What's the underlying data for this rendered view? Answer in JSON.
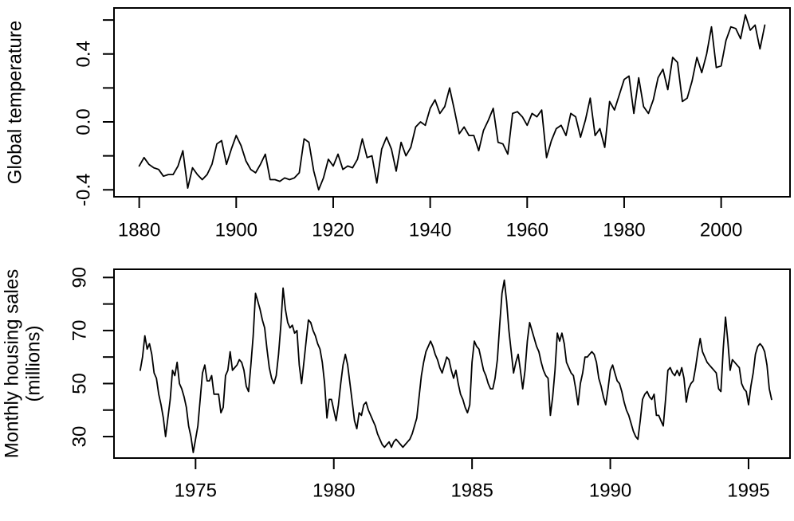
{
  "page": {
    "background": "#ffffff",
    "foreground": "#000000"
  },
  "chart_data": [
    {
      "id": "global-temperature",
      "type": "line",
      "title": "",
      "xlabel": "",
      "ylabel": "Global temperature",
      "ylabel_lines": [
        "Global temperature"
      ],
      "line_color": "#000000",
      "grid": false,
      "legend": "none",
      "x_start": 1880,
      "x_step": 1,
      "xlim": [
        1874.8,
        2014.2
      ],
      "ylim": [
        -0.441,
        0.671
      ],
      "xticks": [
        1880,
        1900,
        1920,
        1940,
        1960,
        1980,
        2000
      ],
      "xtick_labels": [
        "1880",
        "1900",
        "1920",
        "1940",
        "1960",
        "1980",
        "2000"
      ],
      "yticks": [
        -0.4,
        -0.2,
        0.0,
        0.2,
        0.4,
        0.6
      ],
      "ytick_labels": [
        "-0.4",
        "",
        "0.0",
        "",
        "0.4",
        ""
      ],
      "values": [
        -0.26,
        -0.21,
        -0.25,
        -0.27,
        -0.28,
        -0.32,
        -0.31,
        -0.31,
        -0.26,
        -0.17,
        -0.39,
        -0.27,
        -0.31,
        -0.34,
        -0.31,
        -0.25,
        -0.13,
        -0.11,
        -0.25,
        -0.16,
        -0.08,
        -0.14,
        -0.23,
        -0.28,
        -0.3,
        -0.25,
        -0.19,
        -0.34,
        -0.34,
        -0.35,
        -0.33,
        -0.34,
        -0.33,
        -0.3,
        -0.1,
        -0.12,
        -0.29,
        -0.4,
        -0.33,
        -0.22,
        -0.26,
        -0.19,
        -0.28,
        -0.26,
        -0.27,
        -0.22,
        -0.1,
        -0.21,
        -0.2,
        -0.36,
        -0.16,
        -0.09,
        -0.16,
        -0.29,
        -0.12,
        -0.2,
        -0.15,
        -0.03,
        0.0,
        -0.02,
        0.08,
        0.13,
        0.05,
        0.09,
        0.2,
        0.07,
        -0.07,
        -0.03,
        -0.08,
        -0.08,
        -0.17,
        -0.05,
        0.01,
        0.08,
        -0.12,
        -0.13,
        -0.19,
        0.05,
        0.06,
        0.03,
        -0.02,
        0.05,
        0.03,
        0.07,
        -0.21,
        -0.11,
        -0.04,
        -0.02,
        -0.08,
        0.05,
        0.03,
        -0.09,
        0.01,
        0.14,
        -0.08,
        -0.04,
        -0.15,
        0.12,
        0.07,
        0.16,
        0.25,
        0.27,
        0.05,
        0.26,
        0.09,
        0.05,
        0.13,
        0.26,
        0.31,
        0.19,
        0.38,
        0.35,
        0.12,
        0.14,
        0.24,
        0.38,
        0.29,
        0.4,
        0.56,
        0.32,
        0.33,
        0.48,
        0.56,
        0.55,
        0.49,
        0.63,
        0.54,
        0.57,
        0.43,
        0.57
      ]
    },
    {
      "id": "monthly-housing-sales",
      "type": "line",
      "title": "",
      "xlabel": "",
      "ylabel": "Monthly housing sales (millions)",
      "ylabel_lines": [
        "Monthly housing sales",
        "(millions)"
      ],
      "line_color": "#000000",
      "grid": false,
      "legend": "none",
      "x_start": 1973.0,
      "x_step": 0.0833333,
      "xlim": [
        1972.05,
        1996.5
      ],
      "ylim": [
        21.9,
        93.1
      ],
      "xticks": [
        1975,
        1980,
        1985,
        1990,
        1995
      ],
      "xtick_labels": [
        "1975",
        "1980",
        "1985",
        "1990",
        "1995"
      ],
      "yticks": [
        30,
        40,
        50,
        60,
        70,
        80,
        90
      ],
      "ytick_labels": [
        "30",
        "",
        "50",
        "",
        "70",
        "",
        "90"
      ],
      "values": [
        55,
        60,
        68,
        63,
        65,
        61,
        54,
        52,
        46,
        42,
        37,
        30,
        37,
        44,
        55,
        53,
        58,
        50,
        48,
        45,
        41,
        34,
        30,
        24,
        29,
        34,
        44,
        54,
        57,
        51,
        51,
        53,
        46,
        46,
        46,
        39,
        41,
        53,
        55,
        62,
        55,
        56,
        57,
        59,
        58,
        55,
        49,
        47,
        57,
        68,
        84,
        81,
        78,
        74,
        71,
        63,
        56,
        52,
        50,
        53,
        61,
        72,
        86,
        78,
        73,
        71,
        72,
        69,
        70,
        57,
        50,
        58,
        66,
        74,
        73,
        70,
        68,
        65,
        63,
        58,
        50,
        37,
        44,
        44,
        40,
        36,
        42,
        50,
        57,
        61,
        57,
        50,
        43,
        36,
        33,
        39,
        38,
        42,
        43,
        40,
        38,
        36,
        34,
        31,
        29,
        27,
        26,
        27,
        28,
        26,
        28,
        29,
        28,
        27,
        26,
        27,
        28,
        29,
        31,
        34,
        37,
        45,
        53,
        58,
        62,
        64,
        66,
        64,
        61,
        59,
        56,
        54,
        57,
        60,
        59,
        55,
        52,
        55,
        50,
        46,
        44,
        41,
        39,
        42,
        58,
        66,
        64,
        63,
        59,
        55,
        53,
        50,
        48,
        48,
        52,
        59,
        72,
        84,
        89,
        81,
        70,
        62,
        54,
        58,
        61,
        55,
        48,
        55,
        66,
        73,
        70,
        67,
        64,
        62,
        58,
        55,
        53,
        52,
        38,
        45,
        55,
        69,
        66,
        69,
        65,
        58,
        56,
        54,
        53,
        48,
        42,
        50,
        54,
        60,
        60,
        61,
        62,
        61,
        58,
        52,
        49,
        45,
        42,
        48,
        55,
        57,
        54,
        51,
        50,
        47,
        43,
        40,
        38,
        35,
        32,
        30,
        29,
        36,
        44,
        46,
        47,
        45,
        44,
        46,
        38,
        38,
        36,
        34,
        44,
        55,
        56,
        54,
        53,
        55,
        53,
        56,
        52,
        43,
        48,
        50,
        51,
        56,
        62,
        67,
        62,
        60,
        58,
        57,
        56,
        55,
        54,
        48,
        47,
        63,
        75,
        66,
        55,
        59,
        58,
        57,
        56,
        50,
        48,
        47,
        42,
        49,
        54,
        61,
        64,
        65,
        64,
        62,
        57,
        48,
        44
      ]
    }
  ]
}
